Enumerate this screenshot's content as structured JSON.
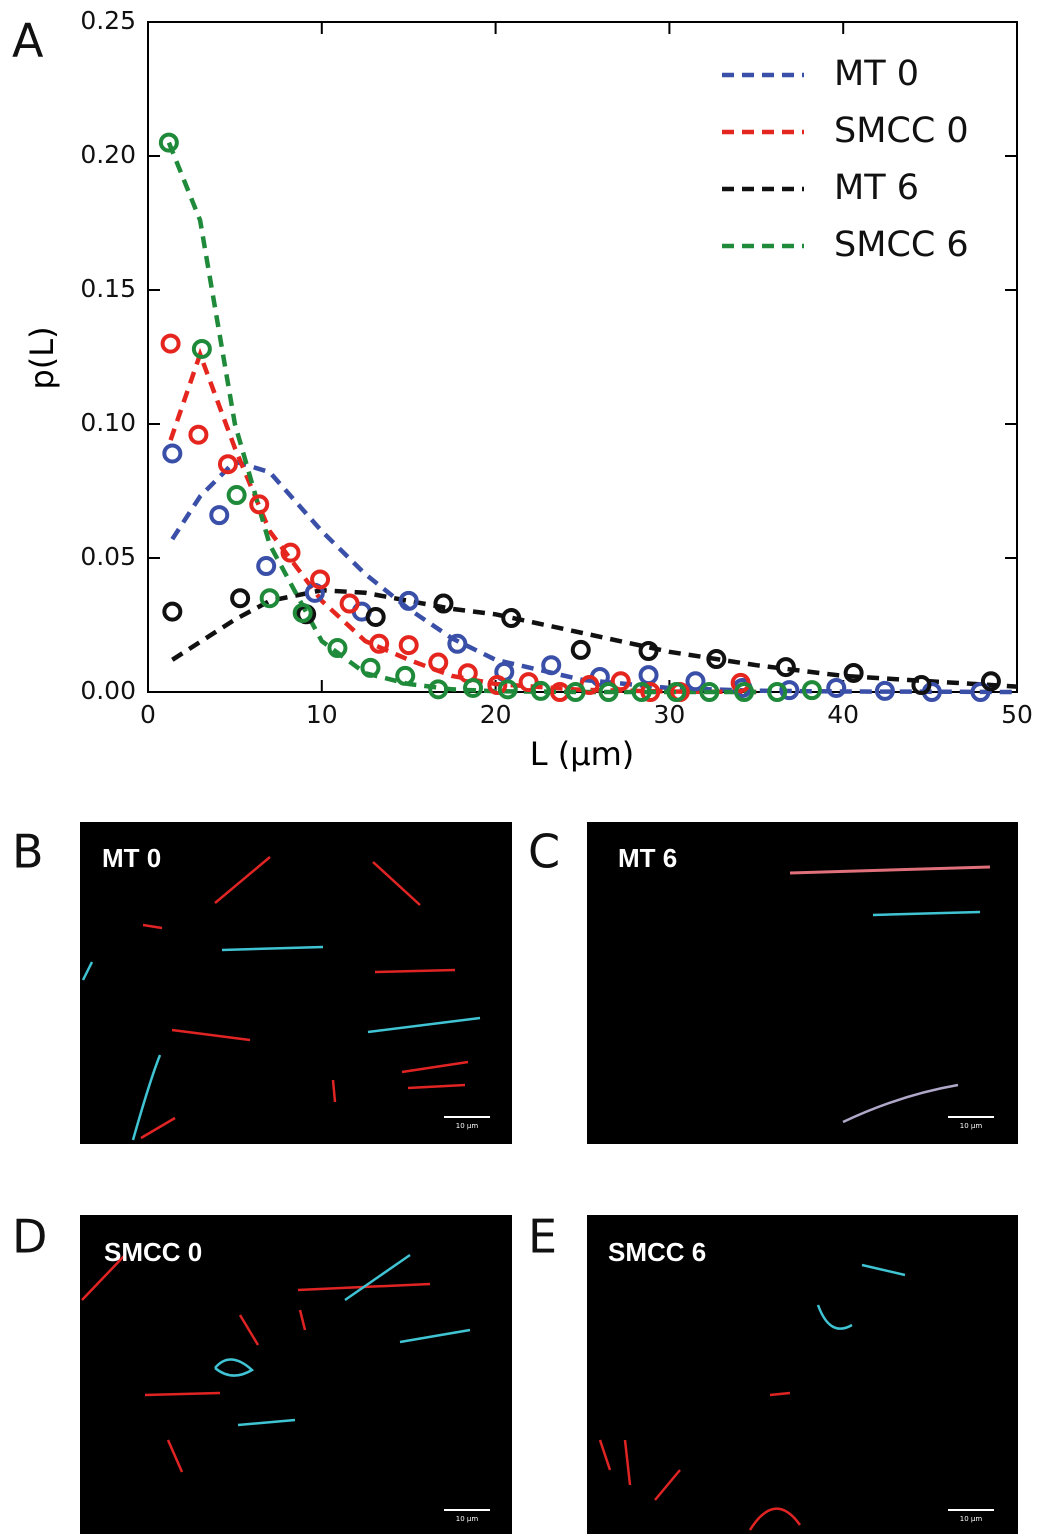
{
  "chart_data": {
    "type": "scatter-fit",
    "panel_letter": "A",
    "x_label": "L (μm)",
    "y_label": "p(L)",
    "xlim": [
      0,
      50
    ],
    "xticks": [
      0,
      10,
      20,
      30,
      40,
      50
    ],
    "ylim": [
      0,
      0.25
    ],
    "yticks": [
      {
        "value": 0,
        "label": "0.00"
      },
      0.05,
      {
        "value": 0.1,
        "label": "0.10"
      },
      0.15,
      {
        "value": 0.2,
        "label": "0.20"
      },
      0.25
    ],
    "legend": "upper right",
    "series": [
      {
        "name": "MT 0",
        "color": "#3a4fa8",
        "x": [
          1.4,
          4.1,
          6.8,
          9.6,
          12.3,
          15.0,
          17.8,
          20.5,
          23.2,
          26.0,
          28.8,
          31.5,
          34.2,
          36.9,
          39.6,
          42.4,
          45.1,
          47.9
        ],
        "values": [
          0.089,
          0.066,
          0.047,
          0.037,
          0.03,
          0.034,
          0.018,
          0.0075,
          0.01,
          0.0056,
          0.0063,
          0.004,
          0.0015,
          0.0007,
          0.0015,
          0.0004,
          0,
          0
        ],
        "fit_x": [
          1.4,
          3,
          5,
          7,
          10,
          12.5,
          15,
          17.5,
          20,
          25,
          30,
          35,
          40,
          45,
          50
        ],
        "fit_values": [
          0.057,
          0.073,
          0.086,
          0.082,
          0.06,
          0.044,
          0.031,
          0.02,
          0.012,
          0.0045,
          0.0015,
          0.0005,
          0.0002,
          0.0001,
          0
        ]
      },
      {
        "name": "SMCC 0",
        "color": "#e5261f",
        "x": [
          1.3,
          2.9,
          4.6,
          6.4,
          8.2,
          9.9,
          11.6,
          13.3,
          15.0,
          16.7,
          18.4,
          20.1,
          21.9,
          23.7,
          25.4,
          27.2,
          28.9,
          30.6,
          34.1
        ],
        "values": [
          0.13,
          0.096,
          0.085,
          0.07,
          0.052,
          0.042,
          0.033,
          0.018,
          0.0175,
          0.011,
          0.007,
          0.0026,
          0.0037,
          0,
          0.0026,
          0.004,
          0,
          0,
          0.0034
        ],
        "fit_x": [
          1.3,
          3,
          5,
          7,
          10,
          12.5,
          15,
          17.5,
          20,
          25,
          30,
          35
        ],
        "fit_values": [
          0.094,
          0.126,
          0.091,
          0.06,
          0.034,
          0.019,
          0.012,
          0.006,
          0.003,
          0.0008,
          0.0002,
          0
        ]
      },
      {
        "name": "MT 6",
        "color": "#111111",
        "x": [
          1.4,
          5.3,
          9.1,
          13.1,
          17.0,
          20.9,
          24.9,
          28.8,
          32.7,
          36.7,
          40.6,
          44.5,
          48.5
        ],
        "values": [
          0.03,
          0.035,
          0.029,
          0.028,
          0.033,
          0.0276,
          0.0157,
          0.0153,
          0.0123,
          0.0093,
          0.0071,
          0.0026,
          0.004
        ],
        "fit_x": [
          1.4,
          5,
          7,
          10,
          12.5,
          15,
          17.5,
          20,
          25,
          30,
          35,
          40,
          45,
          50
        ],
        "fit_values": [
          0.012,
          0.027,
          0.034,
          0.038,
          0.037,
          0.034,
          0.031,
          0.029,
          0.022,
          0.015,
          0.01,
          0.006,
          0.004,
          0.002
        ]
      },
      {
        "name": "SMCC 6",
        "color": "#1f8a3a",
        "x": [
          1.2,
          3.1,
          5.1,
          7.0,
          8.9,
          10.9,
          12.8,
          14.8,
          16.7,
          18.7,
          20.7,
          22.6,
          24.6,
          26.5,
          28.4,
          30.4,
          32.3,
          34.3,
          36.2,
          38.2
        ],
        "values": [
          0.205,
          0.128,
          0.0735,
          0.035,
          0.0295,
          0.0164,
          0.009,
          0.006,
          0.001,
          0.0015,
          0.001,
          0.0004,
          0,
          0,
          0,
          0,
          0,
          0,
          0,
          0.0007
        ],
        "fit_x": [
          1.2,
          3,
          5,
          7,
          10,
          12.5,
          15,
          17.5,
          20,
          25,
          30,
          35
        ],
        "fit_values": [
          0.205,
          0.176,
          0.1,
          0.055,
          0.019,
          0.007,
          0.003,
          0.001,
          0.0003,
          0,
          0,
          0
        ]
      }
    ]
  },
  "panels": [
    {
      "letter": "B",
      "label": "MT 0",
      "scale_bar": "10 μm"
    },
    {
      "letter": "C",
      "label": "MT 6",
      "scale_bar": "10 μm"
    },
    {
      "letter": "D",
      "label": "SMCC 0",
      "scale_bar": "10 μm"
    },
    {
      "letter": "E",
      "label": "SMCC 6",
      "scale_bar": "10 μm"
    }
  ]
}
